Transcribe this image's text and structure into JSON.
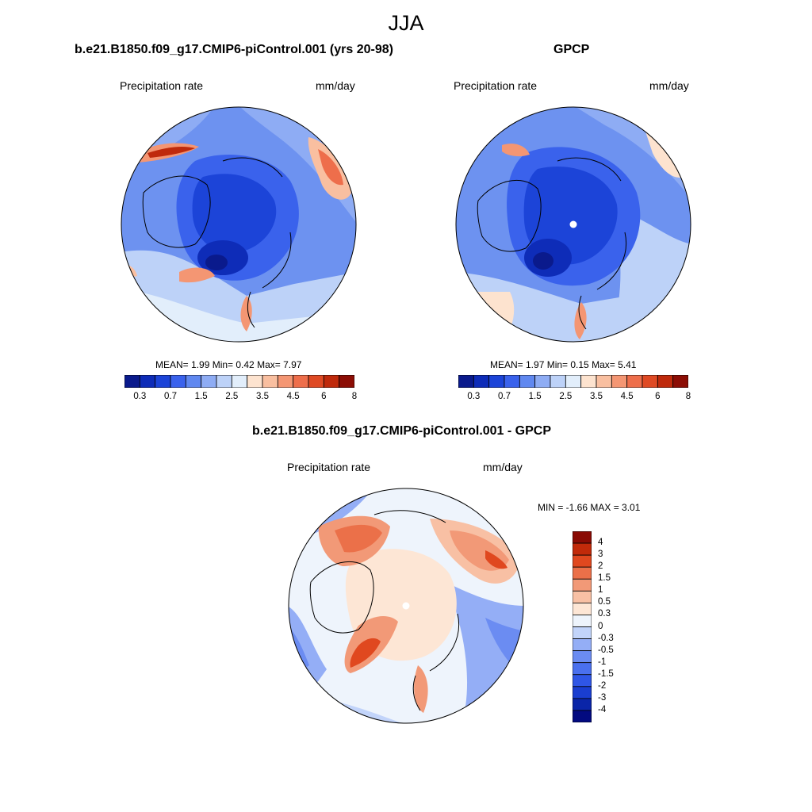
{
  "figure": {
    "title": "JJA"
  },
  "colors": {
    "seq": [
      "#0a1a8c",
      "#0e2cb8",
      "#1c44d8",
      "#3a62ec",
      "#6088f0",
      "#8eacf4",
      "#bdd2f8",
      "#e2eefb",
      "#fde3cf",
      "#f9bfa0",
      "#f49673",
      "#ee6e4b",
      "#df4a24",
      "#bf2a0c",
      "#8c0d05"
    ],
    "div": [
      "#020a80",
      "#0a25a8",
      "#1a3ed0",
      "#2f56e6",
      "#4a70ee",
      "#6b8cf2",
      "#94aef6",
      "#c2d4fa",
      "#eef4fc",
      "#fde6d5",
      "#f8c0a4",
      "#f29977",
      "#eb7049",
      "#e0481f",
      "#c22a0a",
      "#8a0b04"
    ]
  },
  "panels": {
    "model": {
      "title": "b.e21.B1850.f09_g17.CMIP6-piControl.001 (yrs 20-98)",
      "variable": "Precipitation rate",
      "units": "mm/day",
      "stats_label": "MEAN=   1.99  Min=   0.42  Max=   7.97",
      "colorbar_ticks": [
        "0.3",
        "0.7",
        "1.5",
        "2.5",
        "3.5",
        "4.5",
        "6",
        "8"
      ]
    },
    "obs": {
      "title": "GPCP",
      "variable": "Precipitation rate",
      "units": "mm/day",
      "stats_label": "MEAN=   1.97  Min=   0.15  Max=   5.41",
      "colorbar_ticks": [
        "0.3",
        "0.7",
        "1.5",
        "2.5",
        "3.5",
        "4.5",
        "6",
        "8"
      ]
    },
    "diff": {
      "title": "b.e21.B1850.f09_g17.CMIP6-piControl.001 - GPCP",
      "variable": "Precipitation rate",
      "units": "mm/day",
      "stats_label": "MIN =  -1.66 MAX =   3.01",
      "colorbar_ticks": [
        "4",
        "3",
        "2",
        "1.5",
        "1",
        "0.5",
        "0.3",
        "0",
        "-0.3",
        "-0.5",
        "-1",
        "-1.5",
        "-2",
        "-3",
        "-4"
      ]
    }
  }
}
